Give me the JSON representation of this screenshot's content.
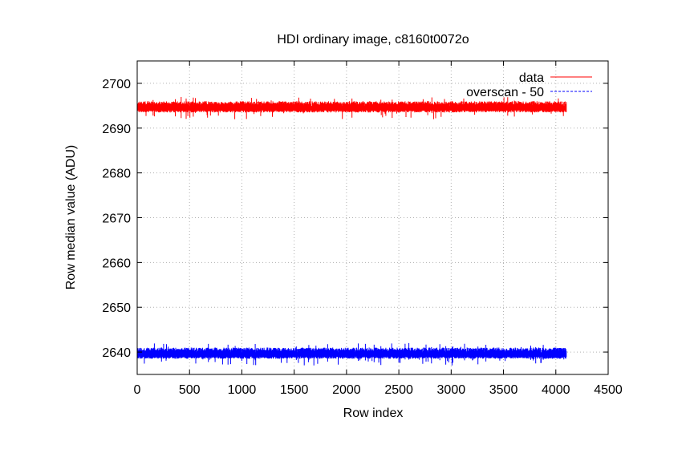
{
  "chart_data": {
    "type": "line",
    "title": "HDI ordinary image, c8160t0072o",
    "xlabel": "Row index",
    "ylabel": "Row median value (ADU)",
    "xlim": [
      0,
      4500
    ],
    "ylim": [
      2635,
      2705
    ],
    "x_ticks": [
      0,
      500,
      1000,
      1500,
      2000,
      2500,
      3000,
      3500,
      4000,
      4500
    ],
    "y_ticks": [
      2640,
      2650,
      2660,
      2670,
      2680,
      2690,
      2700
    ],
    "grid": true,
    "legend_position": "top-right",
    "x_range_of_series": [
      0,
      4100
    ],
    "series": [
      {
        "name": "data",
        "color": "#ff0000",
        "style": "solid",
        "center": 2694.5,
        "typical_min": 2693.5,
        "typical_max": 2696.0,
        "extreme_min": 2692.0,
        "extreme_max": 2697.0
      },
      {
        "name": "overscan - 50",
        "color": "#0000ff",
        "style": "dashed",
        "center": 2639.5,
        "typical_min": 2638.5,
        "typical_max": 2641.0,
        "extreme_min": 2637.0,
        "extreme_max": 2642.0
      }
    ]
  }
}
